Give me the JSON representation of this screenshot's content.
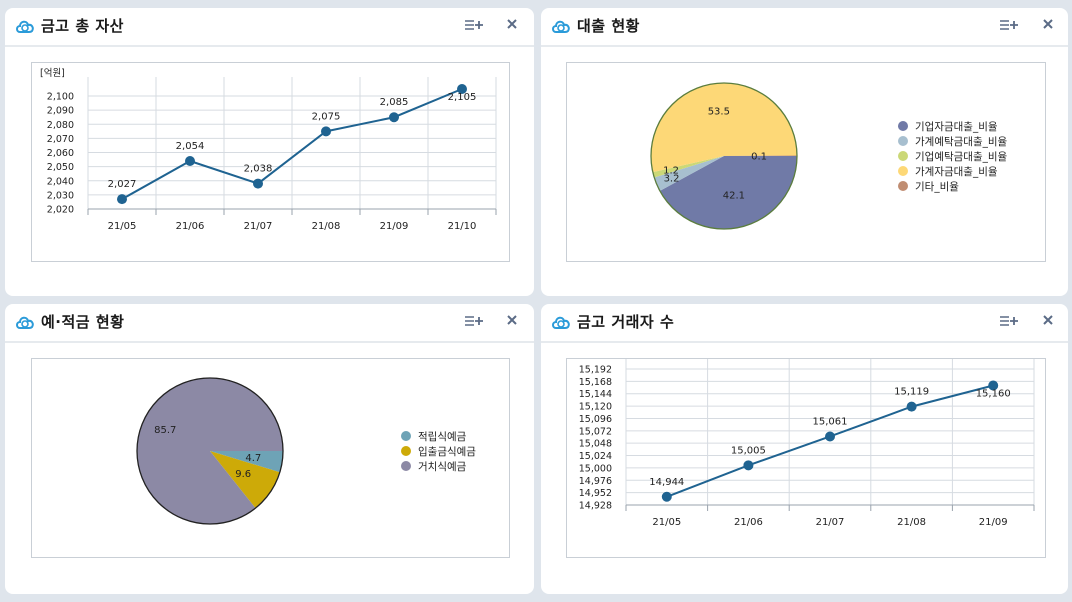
{
  "panels": {
    "assets": {
      "title": "금고 총 자산"
    },
    "loans": {
      "title": "대출 현황"
    },
    "deposits": {
      "title": "예·적금 현황"
    },
    "customers": {
      "title": "금고 거래자 수"
    }
  },
  "colors": {
    "line": "#1f6391",
    "accent_icon": "#2b9bd9",
    "pie_border_loans": "#5b7d3e",
    "pie_border_deposits": "#222222"
  },
  "chart_data": [
    {
      "id": "assets",
      "type": "line",
      "unit_label": "[억원]",
      "categories": [
        "21/05",
        "21/06",
        "21/07",
        "21/08",
        "21/09",
        "21/10"
      ],
      "values": [
        2027,
        2054,
        2038,
        2075,
        2085,
        2105
      ],
      "data_labels": [
        "2,027",
        "2,054",
        "2,038",
        "2,075",
        "2,085",
        "2,105"
      ],
      "yticks": [
        "2,020",
        "2,030",
        "2,040",
        "2,050",
        "2,060",
        "2,070",
        "2,080",
        "2,090",
        "2,100"
      ],
      "ylim": [
        2020,
        2105
      ],
      "grid": true
    },
    {
      "id": "loans",
      "type": "pie",
      "labels": [
        "기업자금대출_비율",
        "가계예탁금대출_비율",
        "기업예탁금대출_비율",
        "가계자금대출_비율",
        "기타_비율"
      ],
      "values": [
        42.1,
        3.2,
        1.2,
        53.5,
        0.1
      ],
      "data_labels": [
        "42.1",
        "3.2",
        "1.2",
        "53.5",
        "0.1"
      ],
      "colors": [
        "#707aa7",
        "#a7bfcf",
        "#cbd877",
        "#fdd877",
        "#c08d72"
      ],
      "legend": "right"
    },
    {
      "id": "deposits",
      "type": "pie",
      "labels": [
        "적립식예금",
        "입출금식예금",
        "거치식예금"
      ],
      "values": [
        4.7,
        9.6,
        85.7
      ],
      "data_labels": [
        "4.7",
        "9.6",
        "85.7"
      ],
      "colors": [
        "#6ea3b6",
        "#cdaa08",
        "#8c89a5"
      ],
      "legend": "right"
    },
    {
      "id": "customers",
      "type": "line",
      "categories": [
        "21/05",
        "21/06",
        "21/07",
        "21/08",
        "21/09"
      ],
      "values": [
        14944,
        15005,
        15061,
        15119,
        15160
      ],
      "data_labels": [
        "14,944",
        "15,005",
        "15,061",
        "15,119",
        "15,160"
      ],
      "yticks": [
        "14,928",
        "14,952",
        "14,976",
        "15,000",
        "15,024",
        "15,048",
        "15,072",
        "15,096",
        "15,120",
        "15,144",
        "15,168",
        "15,192"
      ],
      "ylim": [
        14928,
        15192
      ],
      "grid": true
    }
  ]
}
